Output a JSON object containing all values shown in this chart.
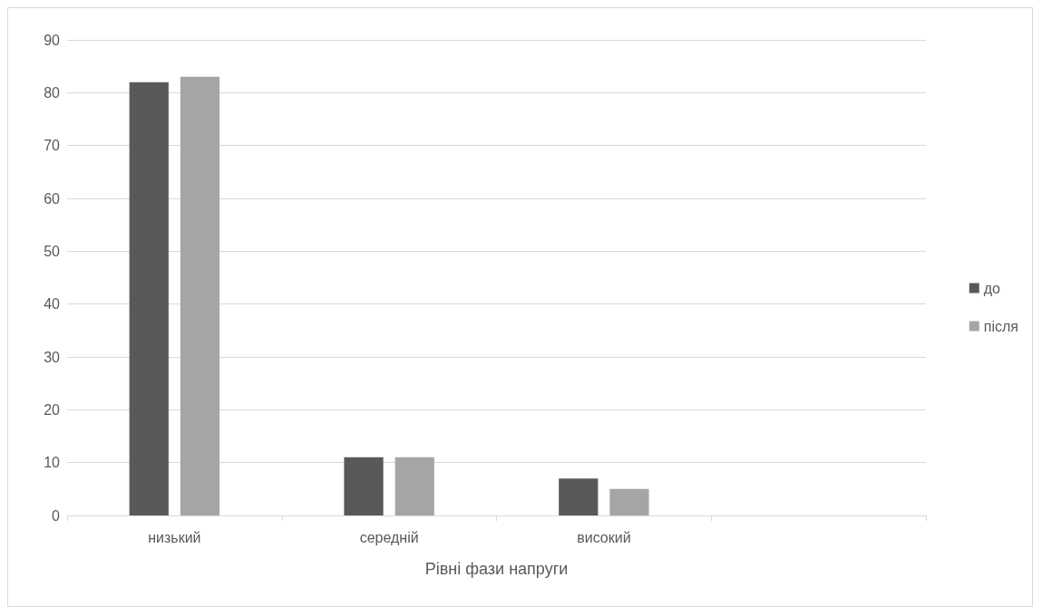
{
  "chart_data": {
    "type": "bar",
    "xlabel": "Рівні фази напруги",
    "categories": [
      "низький",
      "середній",
      "високий",
      null
    ],
    "series": [
      {
        "name": "до",
        "color": "#595959",
        "values": [
          82,
          11,
          7,
          null
        ]
      },
      {
        "name": "після",
        "color": "#a5a5a5",
        "values": [
          83,
          11,
          5,
          null
        ]
      }
    ],
    "ylim": [
      0,
      90
    ],
    "yticks": [
      0,
      10,
      20,
      30,
      40,
      50,
      60,
      70,
      80,
      90
    ],
    "grid": "y",
    "legend": "right"
  }
}
